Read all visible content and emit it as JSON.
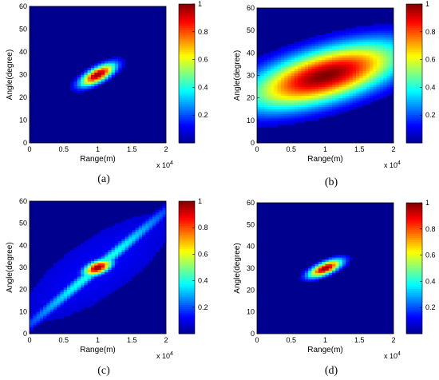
{
  "colors": {
    "background": "#00008f",
    "colormap": [
      "#00008f",
      "#0000ff",
      "#0080ff",
      "#00ffff",
      "#80ff80",
      "#ffff00",
      "#ff8000",
      "#ff0000",
      "#800000"
    ]
  },
  "chart_data": [
    {
      "type": "heatmap",
      "caption": "(a)",
      "xlabel": "Range(m)",
      "ylabel": "Angle(degree)",
      "x_multiplier": "x 10",
      "x_multiplier_exp": "4",
      "xlim": [
        0,
        2
      ],
      "ylim": [
        0,
        60
      ],
      "xticks": [
        "0",
        "0.5",
        "1",
        "1.5",
        "2"
      ],
      "yticks": [
        "0",
        "10",
        "20",
        "30",
        "40",
        "50",
        "60"
      ],
      "colorbar": {
        "range": [
          0,
          1
        ],
        "ticks": [
          "0.2",
          "0.4",
          "0.6",
          "0.8",
          "1"
        ],
        "tick_values": [
          0.2,
          0.4,
          0.6,
          0.8,
          1.0
        ]
      },
      "grid": false,
      "peak": {
        "x": 1.0,
        "y": 30,
        "value": 1.0
      },
      "spread": {
        "major": 4,
        "minor": 1.6,
        "angle": 55
      },
      "streak": null
    },
    {
      "type": "heatmap",
      "caption": "(b)",
      "xlabel": "Range(m)",
      "ylabel": "Angle(degree)",
      "x_multiplier": "x 10",
      "x_multiplier_exp": "4",
      "xlim": [
        0,
        2
      ],
      "ylim": [
        0,
        60
      ],
      "xticks": [
        "0",
        "0.5",
        "1",
        "1.5",
        "2"
      ],
      "yticks": [
        "0",
        "10",
        "20",
        "30",
        "40",
        "50",
        "60"
      ],
      "colorbar": {
        "range": [
          0,
          1
        ],
        "ticks": [
          "0.2",
          "0.4",
          "0.6",
          "0.8",
          "1"
        ],
        "tick_values": [
          0.2,
          0.4,
          0.6,
          0.8,
          1.0
        ]
      },
      "grid": false,
      "peak": {
        "x": 1.0,
        "y": 30,
        "value": 1.0
      },
      "spread": {
        "major": 14,
        "minor": 7,
        "angle": 38
      },
      "streak": null
    },
    {
      "type": "heatmap",
      "caption": "(c)",
      "xlabel": "Range(m)",
      "ylabel": "Angle(degree)",
      "x_multiplier": "x 10",
      "x_multiplier_exp": "4",
      "xlim": [
        0,
        2
      ],
      "ylim": [
        0,
        60
      ],
      "xticks": [
        "0",
        "0.5",
        "1",
        "1.5",
        "2"
      ],
      "yticks": [
        "0",
        "10",
        "20",
        "30",
        "40",
        "50",
        "60"
      ],
      "colorbar": {
        "range": [
          0,
          1
        ],
        "ticks": [
          "0.2",
          "0.4",
          "0.6",
          "0.8",
          "1"
        ],
        "tick_values": [
          0.2,
          0.4,
          0.6,
          0.8,
          1.0
        ]
      },
      "grid": false,
      "peak": {
        "x": 1.0,
        "y": 30,
        "value": 1.0
      },
      "spread": {
        "major": 3,
        "minor": 1.6,
        "angle": 55
      },
      "streak": {
        "major": 24,
        "minor": 1.3,
        "angle": 60,
        "value": 0.42
      }
    },
    {
      "type": "heatmap",
      "caption": "(d)",
      "xlabel": "Range(m)",
      "ylabel": "Angle(degree)",
      "x_multiplier": "x 10",
      "x_multiplier_exp": "4",
      "xlim": [
        0,
        2
      ],
      "ylim": [
        0,
        60
      ],
      "xticks": [
        "0",
        "0.5",
        "1",
        "1.5",
        "2"
      ],
      "yticks": [
        "0",
        "10",
        "20",
        "30",
        "40",
        "50",
        "60"
      ],
      "colorbar": {
        "range": [
          0,
          1
        ],
        "ticks": [
          "0.2",
          "0.4",
          "0.6",
          "0.8",
          "1"
        ],
        "tick_values": [
          0.2,
          0.4,
          0.6,
          0.8,
          1.0
        ]
      },
      "grid": false,
      "peak": {
        "x": 1.0,
        "y": 30,
        "value": 1.0
      },
      "spread": {
        "major": 3.5,
        "minor": 1.5,
        "angle": 50
      },
      "streak": null
    }
  ]
}
